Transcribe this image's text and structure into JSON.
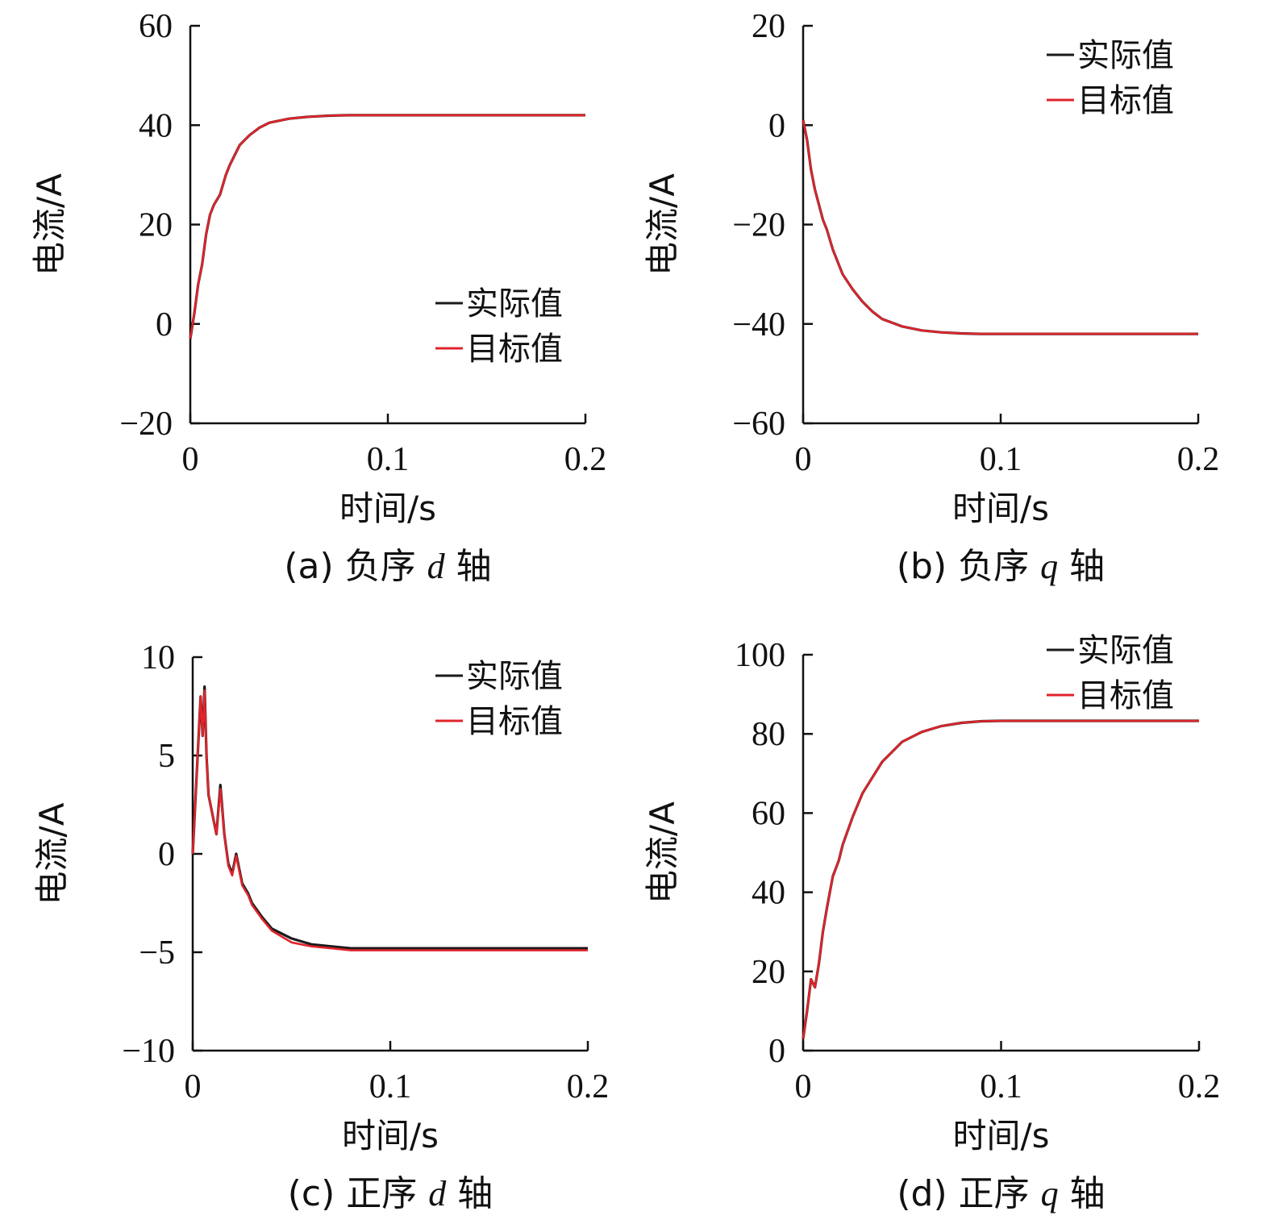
{
  "colors": {
    "actual": "#1a1a1a",
    "target": "#e0242c",
    "axis": "#111111"
  },
  "chart_data": [
    {
      "type": "line",
      "caption": {
        "prefix": "(a) 负序 ",
        "axis_letter": "d",
        "suffix": " 轴"
      },
      "xlabel": "时间/s",
      "ylabel": "电流/A",
      "xlim": [
        0,
        0.2
      ],
      "ylim": [
        -20,
        60
      ],
      "xticks": [
        0,
        0.1,
        0.2
      ],
      "xtick_labels": [
        "0",
        "0.1",
        "0.2"
      ],
      "yticks": [
        -20,
        0,
        20,
        40,
        60
      ],
      "ytick_labels": [
        "−20",
        "0",
        "20",
        "40",
        "60"
      ],
      "legend": {
        "position": "middle-right",
        "entries": [
          "实际值",
          "目标值"
        ]
      },
      "series": [
        {
          "name": "实际值",
          "color": "#1a1a1a",
          "x": [
            0,
            0.002,
            0.004,
            0.006,
            0.008,
            0.01,
            0.012,
            0.015,
            0.018,
            0.02,
            0.025,
            0.03,
            0.035,
            0.04,
            0.05,
            0.06,
            0.07,
            0.08,
            0.1,
            0.15,
            0.2
          ],
          "y": [
            -3,
            2,
            8,
            12,
            18,
            22,
            24,
            26,
            30,
            32,
            36,
            38,
            39.5,
            40.5,
            41.3,
            41.7,
            41.9,
            42,
            42,
            42,
            42
          ]
        },
        {
          "name": "目标值",
          "color": "#e0242c",
          "x": [
            0,
            0.002,
            0.004,
            0.006,
            0.008,
            0.01,
            0.012,
            0.015,
            0.018,
            0.02,
            0.025,
            0.03,
            0.035,
            0.04,
            0.05,
            0.06,
            0.07,
            0.08,
            0.1,
            0.15,
            0.2
          ],
          "y": [
            -3,
            2,
            8,
            12,
            18,
            22,
            24,
            26,
            30,
            32,
            36,
            38,
            39.5,
            40.5,
            41.3,
            41.7,
            41.9,
            42,
            42,
            42,
            42
          ]
        }
      ]
    },
    {
      "type": "line",
      "caption": {
        "prefix": "(b) 负序 ",
        "axis_letter": "q",
        "suffix": " 轴"
      },
      "xlabel": "时间/s",
      "ylabel": "电流/A",
      "xlim": [
        0,
        0.2
      ],
      "ylim": [
        -60,
        20
      ],
      "xticks": [
        0,
        0.1,
        0.2
      ],
      "xtick_labels": [
        "0",
        "0.1",
        "0.2"
      ],
      "yticks": [
        -60,
        -40,
        -20,
        0,
        20
      ],
      "ytick_labels": [
        "−60",
        "−40",
        "−20",
        "0",
        "20"
      ],
      "legend": {
        "position": "top-right",
        "entries": [
          "实际值",
          "目标值"
        ]
      },
      "series": [
        {
          "name": "实际值",
          "color": "#1a1a1a",
          "x": [
            0,
            0.002,
            0.004,
            0.006,
            0.008,
            0.01,
            0.012,
            0.015,
            0.018,
            0.02,
            0.025,
            0.03,
            0.035,
            0.04,
            0.05,
            0.06,
            0.07,
            0.08,
            0.09,
            0.1,
            0.15,
            0.2
          ],
          "y": [
            1,
            -3,
            -9,
            -13,
            -16,
            -19,
            -21,
            -25,
            -28,
            -30,
            -33,
            -35.5,
            -37.5,
            -39,
            -40.5,
            -41.3,
            -41.7,
            -41.9,
            -42,
            -42,
            -42,
            -42
          ]
        },
        {
          "name": "目标值",
          "color": "#e0242c",
          "x": [
            0,
            0.002,
            0.004,
            0.006,
            0.008,
            0.01,
            0.012,
            0.015,
            0.018,
            0.02,
            0.025,
            0.03,
            0.035,
            0.04,
            0.05,
            0.06,
            0.07,
            0.08,
            0.09,
            0.1,
            0.15,
            0.2
          ],
          "y": [
            1,
            -3,
            -9,
            -13,
            -16,
            -19,
            -21,
            -25,
            -28,
            -30,
            -33,
            -35.5,
            -37.5,
            -39,
            -40.5,
            -41.3,
            -41.7,
            -41.9,
            -42,
            -42,
            -42,
            -42
          ]
        }
      ]
    },
    {
      "type": "line",
      "caption": {
        "prefix": "(c) 正序 ",
        "axis_letter": "d",
        "suffix": " 轴"
      },
      "xlabel": "时间/s",
      "ylabel": "电流/A",
      "xlim": [
        0,
        0.2
      ],
      "ylim": [
        -10,
        10
      ],
      "xticks": [
        0,
        0.1,
        0.2
      ],
      "xtick_labels": [
        "0",
        "0.1",
        "0.2"
      ],
      "yticks": [
        -10,
        -5,
        0,
        5,
        10
      ],
      "ytick_labels": [
        "−10",
        "−5",
        "0",
        "5",
        "10"
      ],
      "legend": {
        "position": "top-right",
        "entries": [
          "实际值",
          "目标值"
        ]
      },
      "series": [
        {
          "name": "实际值",
          "color": "#1a1a1a",
          "x": [
            0,
            0.002,
            0.004,
            0.005,
            0.006,
            0.007,
            0.008,
            0.01,
            0.012,
            0.014,
            0.016,
            0.018,
            0.02,
            0.022,
            0.025,
            0.028,
            0.03,
            0.035,
            0.04,
            0.05,
            0.06,
            0.07,
            0.08,
            0.1,
            0.15,
            0.2
          ],
          "y": [
            0,
            4,
            8,
            6,
            8.5,
            5,
            3,
            2,
            1,
            3.5,
            1,
            -0.5,
            -1,
            0,
            -1.5,
            -2,
            -2.5,
            -3.2,
            -3.8,
            -4.3,
            -4.6,
            -4.7,
            -4.8,
            -4.8,
            -4.8,
            -4.8
          ]
        },
        {
          "name": "目标值",
          "color": "#e0242c",
          "x": [
            0,
            0.002,
            0.004,
            0.005,
            0.006,
            0.007,
            0.008,
            0.01,
            0.012,
            0.014,
            0.016,
            0.018,
            0.02,
            0.022,
            0.025,
            0.028,
            0.03,
            0.035,
            0.04,
            0.05,
            0.06,
            0.07,
            0.08,
            0.1,
            0.15,
            0.2
          ],
          "y": [
            0,
            4,
            8,
            6,
            8.3,
            5,
            3,
            2,
            1,
            3.3,
            1,
            -0.6,
            -1.1,
            -0.1,
            -1.6,
            -2.1,
            -2.6,
            -3.3,
            -3.9,
            -4.5,
            -4.7,
            -4.8,
            -4.9,
            -4.9,
            -4.9,
            -4.9
          ]
        }
      ]
    },
    {
      "type": "line",
      "caption": {
        "prefix": "(d) 正序 ",
        "axis_letter": "q",
        "suffix": " 轴"
      },
      "xlabel": "时间/s",
      "ylabel": "电流/A",
      "xlim": [
        0,
        0.2
      ],
      "ylim": [
        0,
        100
      ],
      "xticks": [
        0,
        0.1,
        0.2
      ],
      "xtick_labels": [
        "0",
        "0.1",
        "0.2"
      ],
      "yticks": [
        0,
        20,
        40,
        60,
        80,
        100
      ],
      "ytick_labels": [
        "0",
        "20",
        "40",
        "60",
        "80",
        "100"
      ],
      "legend": {
        "position": "top-right",
        "entries": [
          "实际值",
          "目标值"
        ]
      },
      "series": [
        {
          "name": "实际值",
          "color": "#1a1a1a",
          "x": [
            0,
            0.002,
            0.004,
            0.006,
            0.008,
            0.01,
            0.012,
            0.015,
            0.018,
            0.02,
            0.025,
            0.03,
            0.035,
            0.04,
            0.05,
            0.06,
            0.07,
            0.08,
            0.09,
            0.1,
            0.15,
            0.2
          ],
          "y": [
            3,
            10,
            18,
            16,
            22,
            30,
            36,
            44,
            48,
            52,
            59,
            65,
            69,
            73,
            78,
            80.5,
            82,
            82.8,
            83.2,
            83.3,
            83.3,
            83.3
          ]
        },
        {
          "name": "目标值",
          "color": "#e0242c",
          "x": [
            0,
            0.002,
            0.004,
            0.006,
            0.008,
            0.01,
            0.012,
            0.015,
            0.018,
            0.02,
            0.025,
            0.03,
            0.035,
            0.04,
            0.05,
            0.06,
            0.07,
            0.08,
            0.09,
            0.1,
            0.15,
            0.2
          ],
          "y": [
            3,
            10,
            18,
            16,
            22,
            30,
            36,
            44,
            48,
            52,
            59,
            65,
            69,
            73,
            78,
            80.5,
            82,
            82.8,
            83.2,
            83.3,
            83.3,
            83.3
          ]
        }
      ]
    }
  ]
}
